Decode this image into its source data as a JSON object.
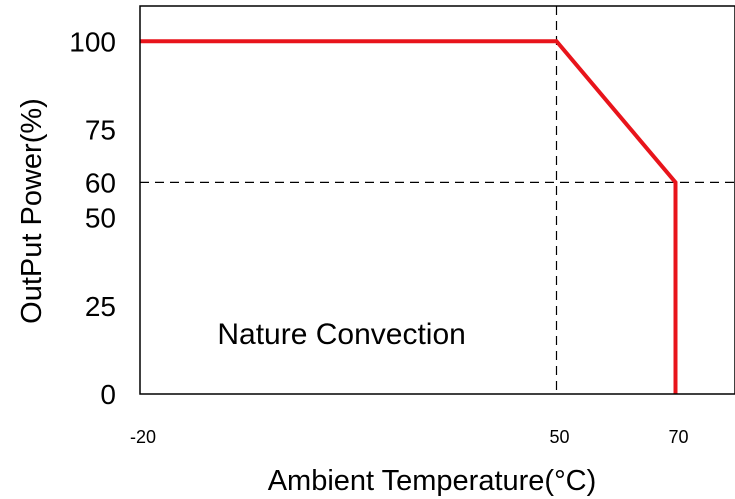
{
  "chart_data": {
    "type": "line",
    "title": "",
    "xlabel": "Ambient Temperature(°C)",
    "ylabel": "OutPut Power(%)",
    "xlim": [
      -20,
      80
    ],
    "ylim": [
      0,
      110
    ],
    "x_ticks": [
      -20,
      50,
      70
    ],
    "x_tick_labels": [
      "-20",
      "50",
      "70"
    ],
    "y_ticks": [
      0,
      25,
      50,
      60,
      75,
      100
    ],
    "y_tick_labels": [
      "0",
      "25",
      "50",
      "60",
      "75",
      "100"
    ],
    "series": [
      {
        "x": [
          -20,
          50,
          70,
          70
        ],
        "y": [
          100,
          100,
          60,
          0
        ],
        "color": "#e8141b"
      }
    ],
    "reference_lines": [
      {
        "orientation": "vertical",
        "value": 50
      },
      {
        "orientation": "horizontal",
        "value": 60
      }
    ],
    "annotation": {
      "text": "Nature Convection",
      "x": -7,
      "y": 17
    },
    "grid": false,
    "legend": "none"
  }
}
